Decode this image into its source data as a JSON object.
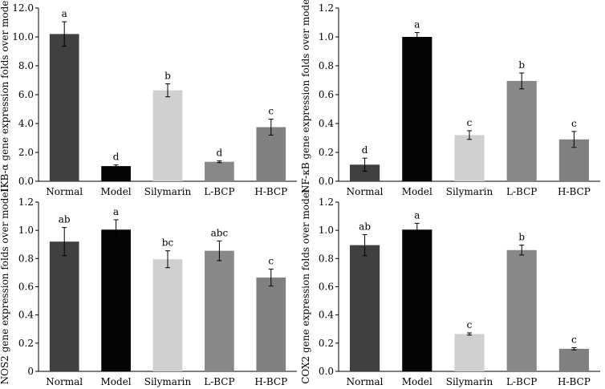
{
  "chart_data": [
    {
      "type": "bar",
      "title": "",
      "ylabel": "IKB-α gene expression folds over model",
      "xlabel": "",
      "categories": [
        "Normal",
        "Model",
        "Silymarin",
        "L-BCP",
        "H-BCP"
      ],
      "values": [
        10.2,
        1.05,
        6.3,
        1.35,
        3.75
      ],
      "errors": [
        0.85,
        0.08,
        0.45,
        0.06,
        0.55
      ],
      "significance": [
        "a",
        "d",
        "b",
        "d",
        "c"
      ],
      "colors": [
        "#404040",
        "#050505",
        "#d0d0d0",
        "#888888",
        "#808080"
      ],
      "ylim": [
        0,
        12
      ],
      "yticks": [
        "0.0",
        "2.0",
        "4.0",
        "6.0",
        "8.0",
        "10.0",
        "12.0"
      ],
      "grid": false
    },
    {
      "type": "bar",
      "title": "",
      "ylabel": "NF-κB gene expression folds over model",
      "xlabel": "",
      "categories": [
        "Normal",
        "Model",
        "Silymarin",
        "L-BCP",
        "H-BCP"
      ],
      "values": [
        0.115,
        1.0,
        0.32,
        0.695,
        0.29
      ],
      "errors": [
        0.045,
        0.03,
        0.03,
        0.055,
        0.055
      ],
      "significance": [
        "d",
        "a",
        "c",
        "b",
        "c"
      ],
      "colors": [
        "#404040",
        "#050505",
        "#d0d0d0",
        "#888888",
        "#808080"
      ],
      "ylim": [
        0,
        1.2
      ],
      "yticks": [
        "0.0",
        "0.2",
        "0.4",
        "0.6",
        "0.8",
        "1.0",
        "1.2"
      ],
      "grid": false
    },
    {
      "type": "bar",
      "title": "",
      "ylabel": "NOS2 gene expression folds over model",
      "xlabel": "",
      "categories": [
        "Normal",
        "Model",
        "Silymarin",
        "L-BCP",
        "H-BCP"
      ],
      "values": [
        0.92,
        1.005,
        0.795,
        0.855,
        0.665
      ],
      "errors": [
        0.1,
        0.07,
        0.06,
        0.07,
        0.06
      ],
      "significance": [
        "ab",
        "a",
        "bc",
        "abc",
        "c"
      ],
      "colors": [
        "#404040",
        "#050505",
        "#d0d0d0",
        "#888888",
        "#808080"
      ],
      "ylim": [
        0,
        1.2
      ],
      "yticks": [
        "0",
        "0.2",
        "0.4",
        "0.6",
        "0.8",
        "1.0",
        "1.2"
      ],
      "grid": false
    },
    {
      "type": "bar",
      "title": "",
      "ylabel": "COX2 gene expression folds over model",
      "xlabel": "",
      "categories": [
        "Normal",
        "Model",
        "Silymarin",
        "L-BCP",
        "H-BCP"
      ],
      "values": [
        0.895,
        1.005,
        0.265,
        0.86,
        0.16
      ],
      "errors": [
        0.075,
        0.045,
        0.008,
        0.035,
        0.008
      ],
      "significance": [
        "ab",
        "a",
        "c",
        "b",
        "c"
      ],
      "colors": [
        "#404040",
        "#050505",
        "#d0d0d0",
        "#888888",
        "#808080"
      ],
      "ylim": [
        0,
        1.2
      ],
      "yticks": [
        "0.0",
        "0.2",
        "0.4",
        "0.6",
        "0.8",
        "1.0",
        "1.2"
      ],
      "grid": false
    }
  ]
}
